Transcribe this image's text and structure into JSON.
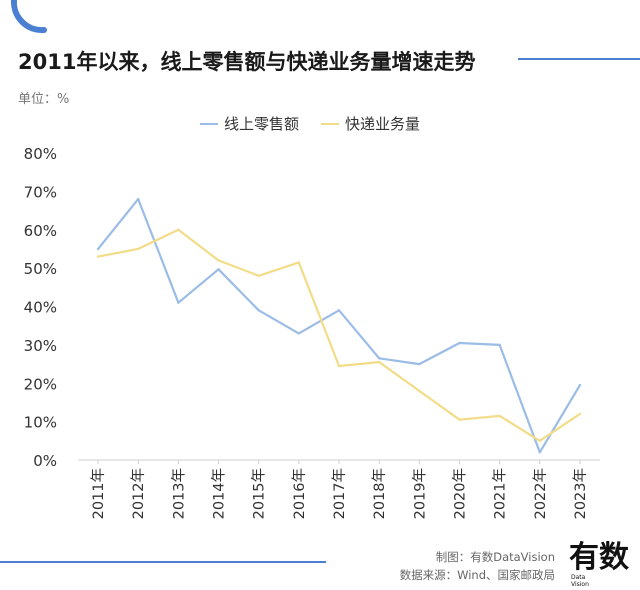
{
  "header": {
    "title": "2011年以来，线上零售额与快递业务量增速走势",
    "unit": "单位：%"
  },
  "footer": {
    "credit_made": "制图：有数DataVision",
    "credit_source": "数据来源：Wind、国家邮政局",
    "logo_text": "有数",
    "logo_subtext_1": "Data",
    "logo_subtext_2": "Vision"
  },
  "colors": {
    "online_retail": "#9bbce6",
    "express": "#f2dc88",
    "accent": "#4a7fd1",
    "grid": "#dddddd"
  },
  "chart_data": {
    "type": "line",
    "title": "2011年以来，线上零售额与快递业务量增速走势",
    "ylabel": "",
    "xlabel": "",
    "ylim": [
      0,
      80
    ],
    "yticks": [
      "0%",
      "10%",
      "20%",
      "30%",
      "40%",
      "50%",
      "60%",
      "70%",
      "80%"
    ],
    "categories": [
      "2011年",
      "2012年",
      "2013年",
      "2014年",
      "2015年",
      "2016年",
      "2017年",
      "2018年",
      "2019年",
      "2020年",
      "2021年",
      "2022年",
      "2023年"
    ],
    "legend_position": "top",
    "grid": false,
    "series": [
      {
        "name": "线上零售额",
        "color": "#9bbce6",
        "values": [
          55,
          68,
          41,
          49.7,
          39,
          33,
          39,
          26.5,
          25,
          30.5,
          30,
          2,
          19.5
        ]
      },
      {
        "name": "快递业务量",
        "color": "#f2dc88",
        "values": [
          53,
          55,
          60,
          52,
          48,
          51.5,
          24.5,
          25.5,
          18,
          10.5,
          11.5,
          5,
          12
        ]
      }
    ]
  }
}
